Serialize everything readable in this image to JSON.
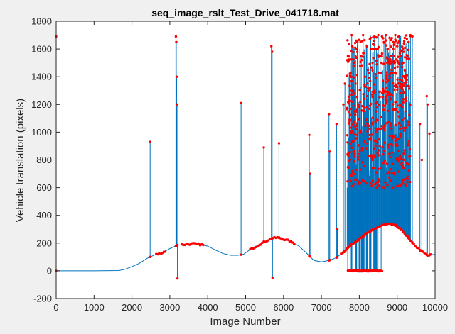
{
  "chart_data": {
    "type": "line",
    "title": "seq_image_rslt_Test_Drive_041718.mat",
    "xlabel": "Image Number",
    "ylabel": "Vehicle translation (pixels)",
    "xlim": [
      0,
      10000
    ],
    "ylim": [
      -200,
      1800
    ],
    "x_ticks": [
      "0",
      "1000",
      "2000",
      "3000",
      "4000",
      "5000",
      "6000",
      "7000",
      "8000",
      "9000",
      "10000"
    ],
    "y_ticks": [
      "-200",
      "0",
      "200",
      "400",
      "600",
      "800",
      "1000",
      "1200",
      "1400",
      "1600",
      "1800"
    ],
    "grid": false,
    "legend": "none",
    "colors": {
      "line": "#0072bd",
      "marker": "#ff0000",
      "axes_bg": "#ffffff",
      "figure_bg": "#f0f0f0"
    },
    "baseline": {
      "x": [
        0,
        1000,
        1650,
        1800,
        2000,
        2200,
        2400,
        2600,
        2800,
        3000,
        3200,
        3400,
        3600,
        3800,
        4000,
        4200,
        4400,
        4600,
        4800,
        4950,
        5100,
        5300,
        5500,
        5700,
        5850,
        6000,
        6200,
        6400,
        6600,
        6800,
        7000,
        7200,
        7400,
        7600,
        7800,
        8000,
        8200,
        8400,
        8600,
        8800,
        9000,
        9200,
        9400,
        9600,
        9800,
        10000
      ],
      "y": [
        0,
        0,
        2,
        10,
        30,
        55,
        90,
        115,
        130,
        160,
        185,
        190,
        195,
        190,
        178,
        150,
        125,
        112,
        112,
        120,
        150,
        180,
        210,
        235,
        240,
        230,
        210,
        180,
        130,
        75,
        65,
        75,
        95,
        140,
        190,
        230,
        270,
        300,
        330,
        340,
        320,
        270,
        200,
        150,
        110,
        120
      ]
    },
    "spikes": {
      "x": [
        0,
        2480,
        3160,
        3170,
        3180,
        3190,
        3200,
        4880,
        5480,
        5680,
        5700,
        5710,
        5880,
        6680,
        6700,
        7200,
        7220,
        7400,
        7420,
        7580,
        7620,
        7700,
        7750,
        7800,
        7850,
        7900,
        7950,
        8000,
        8050,
        8100,
        8150,
        8200,
        8250,
        8300,
        8350,
        8400,
        8450,
        8500,
        8550,
        8600,
        8650,
        8700,
        8750,
        8800,
        8850,
        8900,
        8950,
        9000,
        9050,
        9100,
        9150,
        9200,
        9250,
        9300,
        9350,
        9400,
        9600,
        9650,
        9780,
        9800,
        9850
      ],
      "y": [
        1690,
        930,
        1690,
        1650,
        1400,
        1200,
        -55,
        1210,
        890,
        1620,
        1580,
        -50,
        920,
        980,
        700,
        1130,
        860,
        1060,
        300,
        1200,
        1350,
        1550,
        1420,
        1700,
        1500,
        1350,
        1650,
        1200,
        1550,
        1700,
        1400,
        1620,
        1300,
        1680,
        1500,
        1690,
        1600,
        1700,
        1550,
        1690,
        1650,
        1700,
        1600,
        1680,
        1500,
        1650,
        1700,
        1620,
        1690,
        1550,
        1600,
        1680,
        1400,
        1650,
        1700,
        1690,
        1060,
        800,
        1260,
        1200,
        990
      ]
    },
    "clusters": [
      {
        "x_start": 7680,
        "x_end": 9350,
        "y_min": 600,
        "y_max": 1700
      }
    ],
    "low_band": {
      "x_start": 7700,
      "x_end": 8600,
      "y": 0
    }
  }
}
